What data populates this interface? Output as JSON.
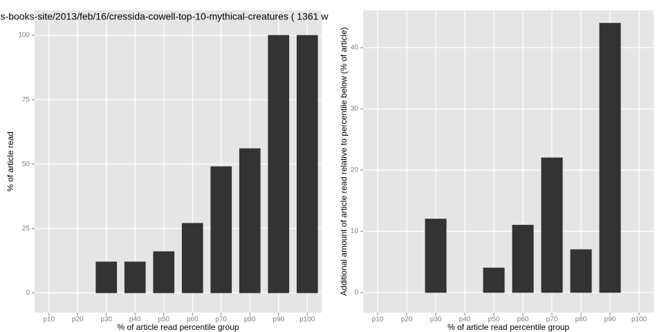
{
  "chart_data": [
    {
      "type": "bar",
      "title": "s-books-site/2013/feb/16/cressida-cowell-top-10-mythical-creatures ( 1361 w",
      "xlabel": "% of article read percentile group",
      "ylabel": "% of article read",
      "categories": [
        "p10",
        "p20",
        "p30",
        "p40",
        "p50",
        "p60",
        "p70",
        "p80",
        "p90",
        "p100"
      ],
      "values": [
        0,
        0,
        12,
        12,
        16,
        27,
        49,
        56,
        100,
        100
      ],
      "color": "#333333",
      "ylim": [
        -7.7,
        109.7
      ],
      "yticks": [
        0,
        25,
        50,
        75,
        100
      ],
      "grid": true
    },
    {
      "type": "bar",
      "xlabel": "% of article read percentile group",
      "ylabel": "Additional amount of article read relative to percentile below (% of article)",
      "categories": [
        "p10",
        "p20",
        "p30",
        "p40",
        "p50",
        "p60",
        "p70",
        "p80",
        "p90",
        "p100"
      ],
      "values": [
        0,
        0,
        12,
        0,
        4,
        11,
        22,
        7,
        44,
        0
      ],
      "color": "#333333",
      "ylim": [
        -3.3,
        46.1
      ],
      "yticks": [
        0,
        10,
        20,
        30,
        40
      ],
      "grid": true
    }
  ]
}
